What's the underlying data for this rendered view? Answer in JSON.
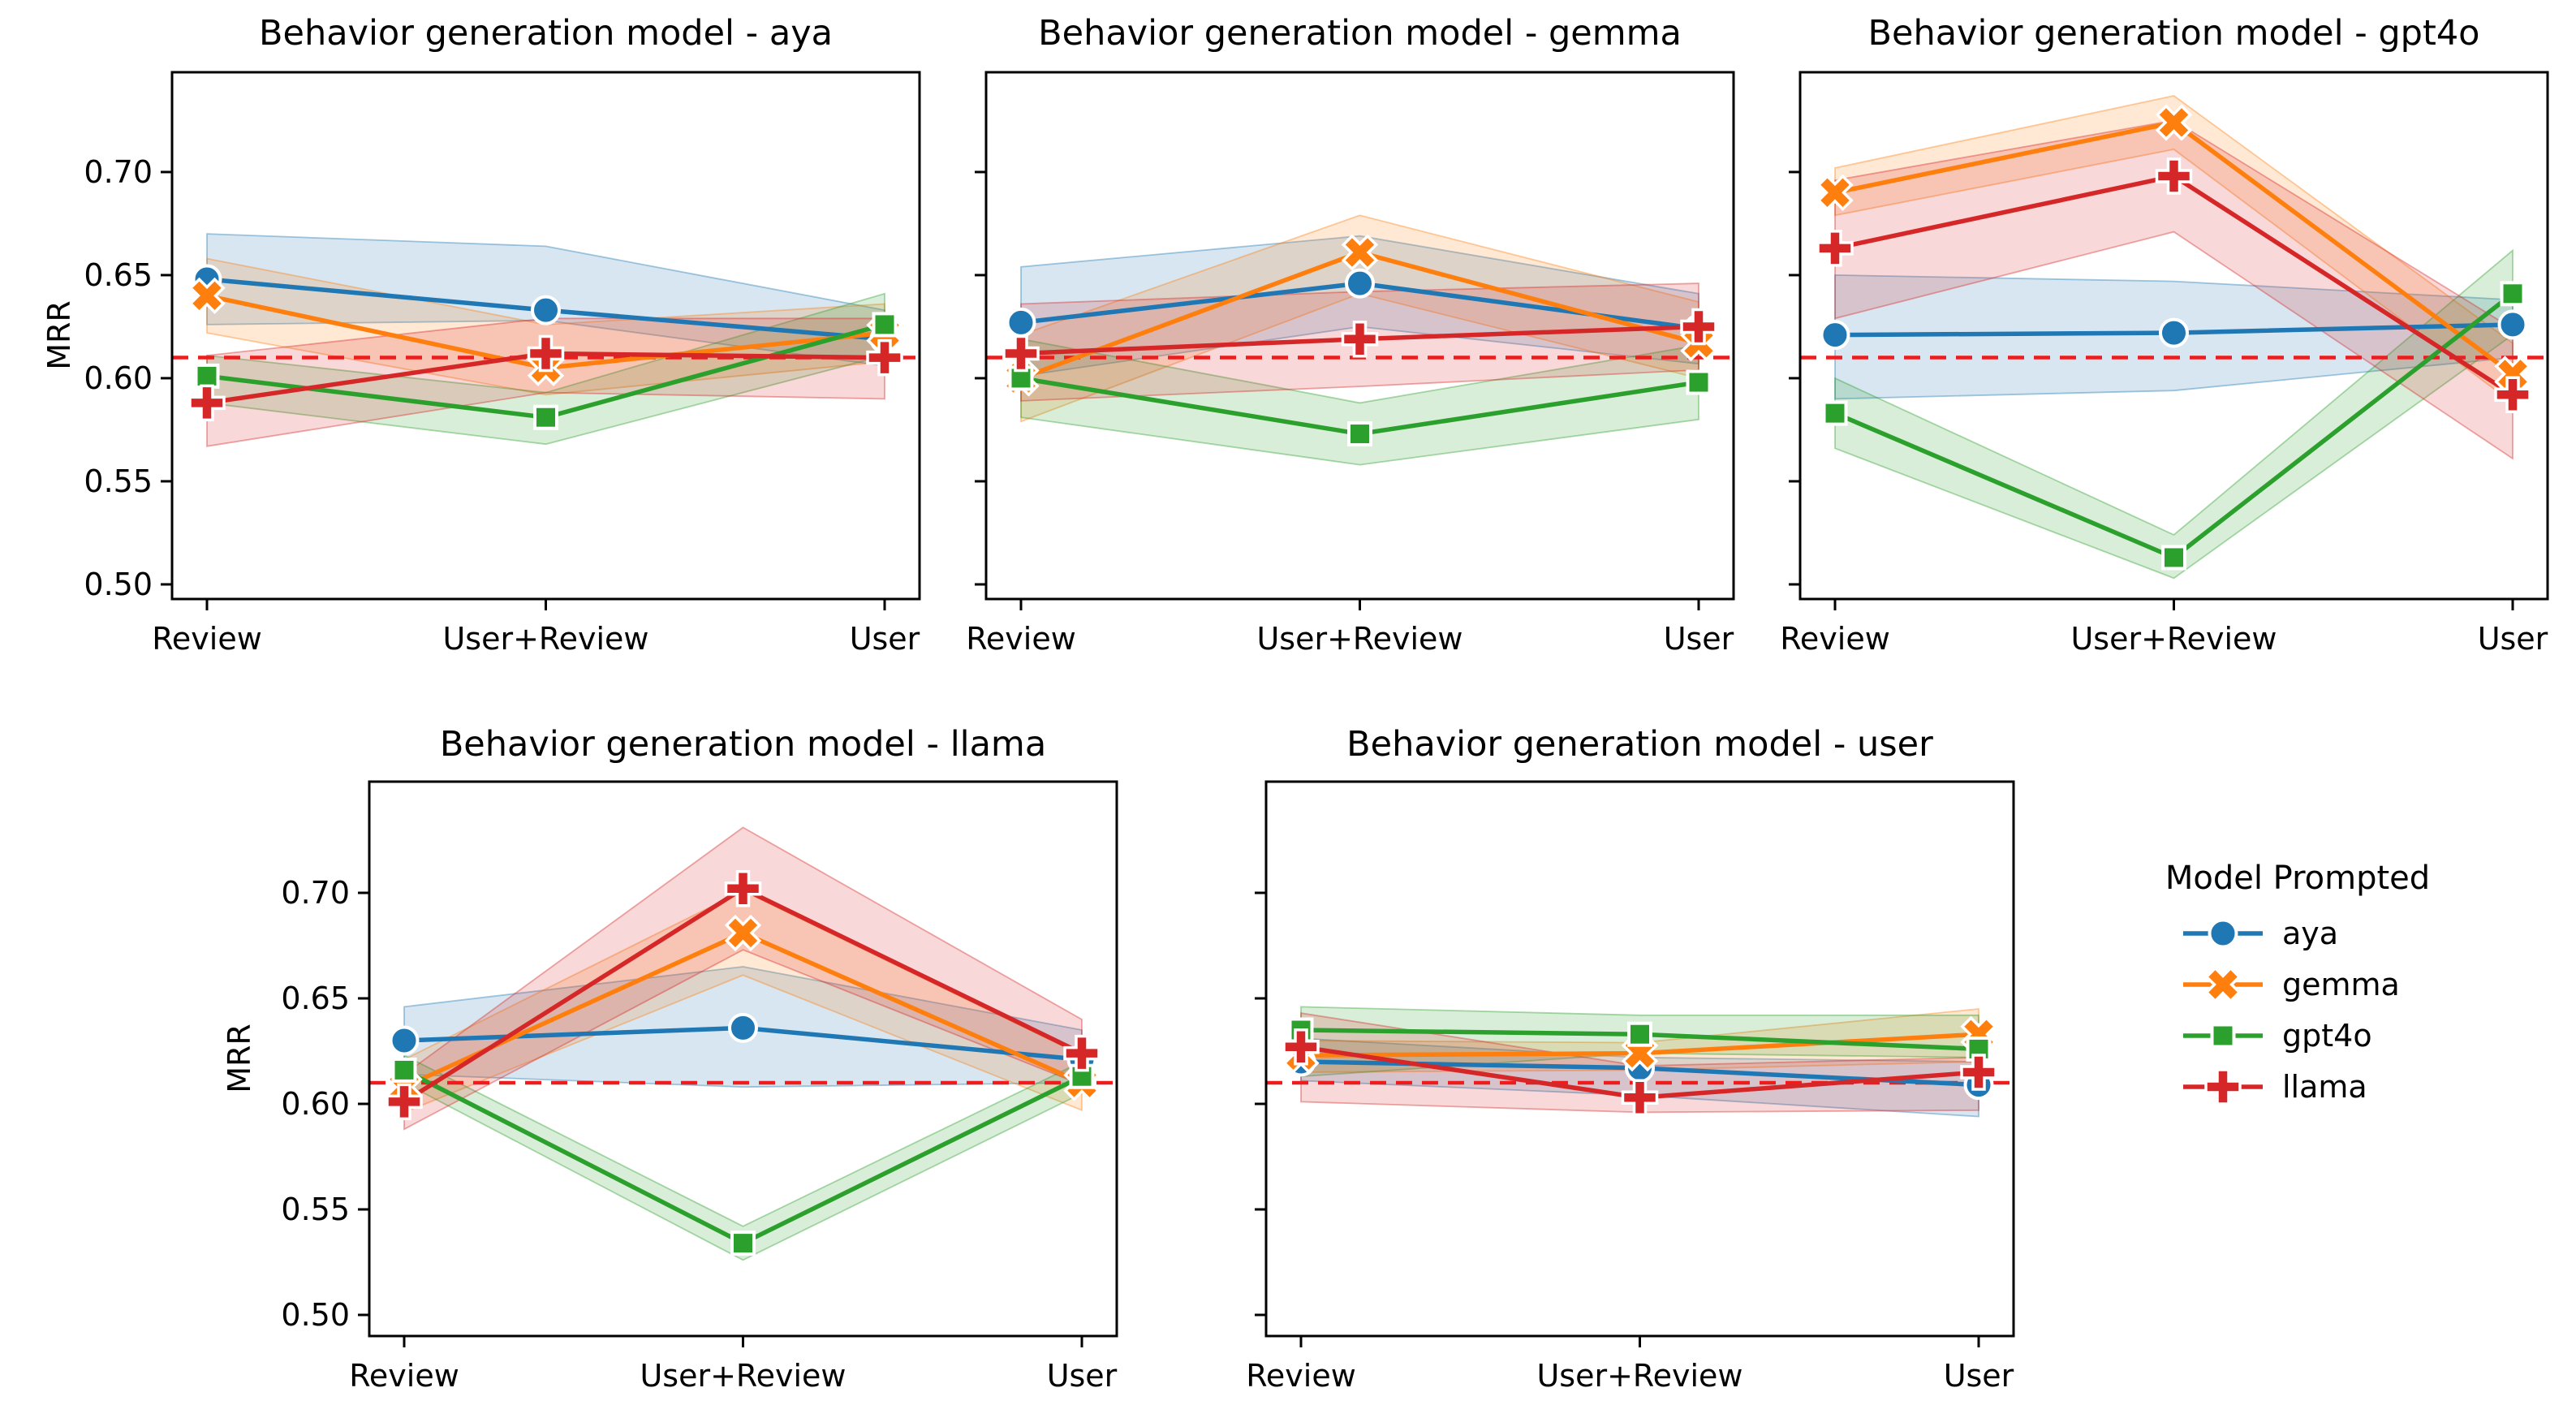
{
  "figure": {
    "background": "#ffffff"
  },
  "axes": {
    "ylabel": "MRR",
    "categories": [
      "Review",
      "User+Review",
      "User"
    ],
    "ytick_labels": [
      "0.50",
      "0.55",
      "0.60",
      "0.65",
      "0.70"
    ],
    "yticks": [
      0.5,
      0.55,
      0.6,
      0.65,
      0.7
    ],
    "ylim": [
      0.49,
      0.75
    ],
    "grid": "off"
  },
  "baseline": {
    "value": 0.61,
    "color": "#ee1c1c",
    "style": "dashed"
  },
  "legend": {
    "title": "Model Prompted",
    "position": "right of bottom row",
    "items": [
      {
        "label": "aya",
        "color": "#1f77b4",
        "marker": "circle"
      },
      {
        "label": "gemma",
        "color": "#ff7f0e",
        "marker": "X"
      },
      {
        "label": "gpt4o",
        "color": "#2ca02c",
        "marker": "square"
      },
      {
        "label": "llama",
        "color": "#d62728",
        "marker": "plus"
      }
    ]
  },
  "chart_data": [
    {
      "type": "line",
      "title": "Behavior generation model - aya",
      "categories": [
        "Review",
        "User+Review",
        "User"
      ],
      "baseline": 0.61,
      "series": [
        {
          "name": "aya",
          "color": "#1f77b4",
          "marker": "circle",
          "values": [
            0.648,
            0.633,
            0.619
          ],
          "ci_lower": [
            0.626,
            0.628,
            0.606
          ],
          "ci_upper": [
            0.67,
            0.664,
            0.633
          ]
        },
        {
          "name": "gemma",
          "color": "#ff7f0e",
          "marker": "X",
          "values": [
            0.64,
            0.605,
            0.622
          ],
          "ci_lower": [
            0.622,
            0.592,
            0.608
          ],
          "ci_upper": [
            0.658,
            0.626,
            0.636
          ]
        },
        {
          "name": "gpt4o",
          "color": "#2ca02c",
          "marker": "square",
          "values": [
            0.601,
            0.581,
            0.626
          ],
          "ci_lower": [
            0.588,
            0.568,
            0.611
          ],
          "ci_upper": [
            0.611,
            0.593,
            0.641
          ]
        },
        {
          "name": "llama",
          "color": "#d62728",
          "marker": "plus",
          "values": [
            0.588,
            0.612,
            0.61
          ],
          "ci_lower": [
            0.567,
            0.593,
            0.59
          ],
          "ci_upper": [
            0.611,
            0.629,
            0.629
          ]
        }
      ]
    },
    {
      "type": "line",
      "title": "Behavior generation model - gemma",
      "categories": [
        "Review",
        "User+Review",
        "User"
      ],
      "baseline": 0.61,
      "series": [
        {
          "name": "aya",
          "color": "#1f77b4",
          "marker": "circle",
          "values": [
            0.627,
            0.646,
            0.624
          ],
          "ci_lower": [
            0.601,
            0.625,
            0.607
          ],
          "ci_upper": [
            0.654,
            0.669,
            0.641
          ]
        },
        {
          "name": "gemma",
          "color": "#ff7f0e",
          "marker": "X",
          "values": [
            0.6,
            0.661,
            0.617
          ],
          "ci_lower": [
            0.579,
            0.641,
            0.6
          ],
          "ci_upper": [
            0.621,
            0.679,
            0.637
          ]
        },
        {
          "name": "gpt4o",
          "color": "#2ca02c",
          "marker": "square",
          "values": [
            0.6,
            0.573,
            0.598
          ],
          "ci_lower": [
            0.581,
            0.558,
            0.58
          ],
          "ci_upper": [
            0.619,
            0.588,
            0.616
          ]
        },
        {
          "name": "llama",
          "color": "#d62728",
          "marker": "plus",
          "values": [
            0.612,
            0.619,
            0.625
          ],
          "ci_lower": [
            0.589,
            0.596,
            0.604
          ],
          "ci_upper": [
            0.636,
            0.642,
            0.646
          ]
        }
      ]
    },
    {
      "type": "line",
      "title": "Behavior generation model - gpt4o",
      "categories": [
        "Review",
        "User+Review",
        "User"
      ],
      "baseline": 0.61,
      "series": [
        {
          "name": "aya",
          "color": "#1f77b4",
          "marker": "circle",
          "values": [
            0.621,
            0.622,
            0.626
          ],
          "ci_lower": [
            0.59,
            0.594,
            0.61
          ],
          "ci_upper": [
            0.65,
            0.647,
            0.638
          ]
        },
        {
          "name": "gemma",
          "color": "#ff7f0e",
          "marker": "X",
          "values": [
            0.69,
            0.724,
            0.602
          ],
          "ci_lower": [
            0.679,
            0.711,
            0.588
          ],
          "ci_upper": [
            0.702,
            0.737,
            0.617
          ]
        },
        {
          "name": "gpt4o",
          "color": "#2ca02c",
          "marker": "square",
          "values": [
            0.583,
            0.513,
            0.641
          ],
          "ci_lower": [
            0.566,
            0.503,
            0.621
          ],
          "ci_upper": [
            0.6,
            0.524,
            0.662
          ]
        },
        {
          "name": "llama",
          "color": "#d62728",
          "marker": "plus",
          "values": [
            0.663,
            0.698,
            0.592
          ],
          "ci_lower": [
            0.629,
            0.671,
            0.561
          ],
          "ci_upper": [
            0.696,
            0.725,
            0.624
          ]
        }
      ]
    },
    {
      "type": "line",
      "title": "Behavior generation model - llama",
      "categories": [
        "Review",
        "User+Review",
        "User"
      ],
      "baseline": 0.61,
      "series": [
        {
          "name": "aya",
          "color": "#1f77b4",
          "marker": "circle",
          "values": [
            0.63,
            0.636,
            0.621
          ],
          "ci_lower": [
            0.614,
            0.608,
            0.61
          ],
          "ci_upper": [
            0.646,
            0.665,
            0.635
          ]
        },
        {
          "name": "gemma",
          "color": "#ff7f0e",
          "marker": "X",
          "values": [
            0.608,
            0.681,
            0.61
          ],
          "ci_lower": [
            0.596,
            0.661,
            0.597
          ],
          "ci_upper": [
            0.621,
            0.701,
            0.623
          ]
        },
        {
          "name": "gpt4o",
          "color": "#2ca02c",
          "marker": "square",
          "values": [
            0.616,
            0.534,
            0.613
          ],
          "ci_lower": [
            0.61,
            0.526,
            0.605
          ],
          "ci_upper": [
            0.623,
            0.542,
            0.62
          ]
        },
        {
          "name": "llama",
          "color": "#d62728",
          "marker": "plus",
          "values": [
            0.601,
            0.702,
            0.624
          ],
          "ci_lower": [
            0.588,
            0.673,
            0.609
          ],
          "ci_upper": [
            0.614,
            0.731,
            0.64
          ]
        }
      ]
    },
    {
      "type": "line",
      "title": "Behavior generation model - user",
      "categories": [
        "Review",
        "User+Review",
        "User"
      ],
      "baseline": 0.61,
      "series": [
        {
          "name": "aya",
          "color": "#1f77b4",
          "marker": "circle",
          "values": [
            0.62,
            0.617,
            0.609
          ],
          "ci_lower": [
            0.611,
            0.604,
            0.594
          ],
          "ci_upper": [
            0.631,
            0.622,
            0.62
          ]
        },
        {
          "name": "gemma",
          "color": "#ff7f0e",
          "marker": "X",
          "values": [
            0.623,
            0.624,
            0.633
          ],
          "ci_lower": [
            0.615,
            0.616,
            0.62
          ],
          "ci_upper": [
            0.63,
            0.629,
            0.645
          ]
        },
        {
          "name": "gpt4o",
          "color": "#2ca02c",
          "marker": "square",
          "values": [
            0.635,
            0.633,
            0.626
          ],
          "ci_lower": [
            0.613,
            0.624,
            0.622
          ],
          "ci_upper": [
            0.646,
            0.642,
            0.642
          ]
        },
        {
          "name": "llama",
          "color": "#d62728",
          "marker": "plus",
          "values": [
            0.627,
            0.603,
            0.615
          ],
          "ci_lower": [
            0.601,
            0.596,
            0.597
          ],
          "ci_upper": [
            0.643,
            0.618,
            0.622
          ]
        }
      ]
    }
  ]
}
